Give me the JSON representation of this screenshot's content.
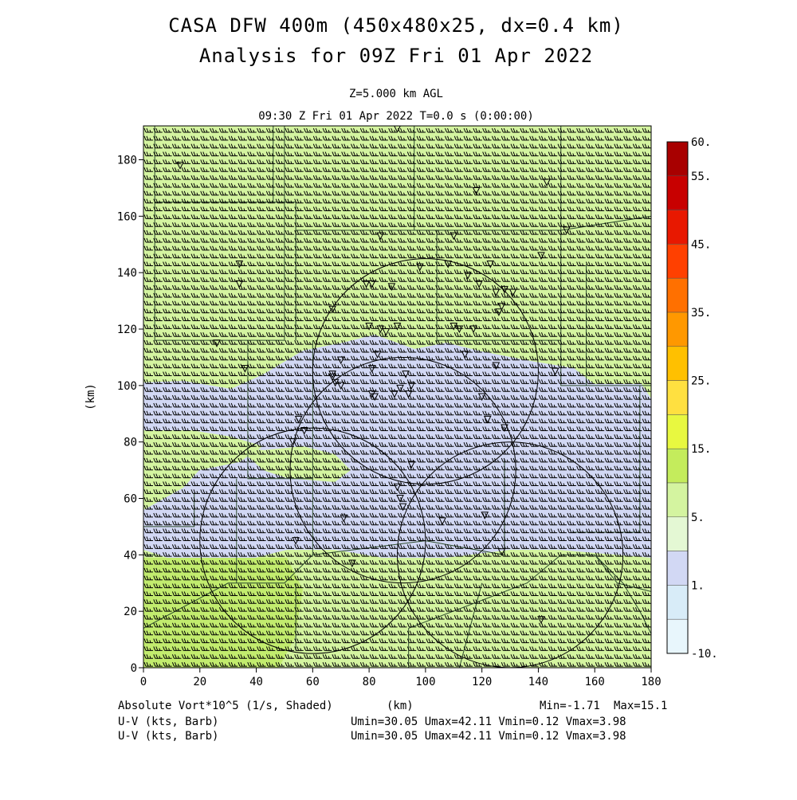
{
  "header": {
    "title_line1": "CASA DFW 400m (450x480x25, dx=0.4 km)",
    "title_line2": "Analysis for 09Z Fri 01 Apr 2022",
    "level": "Z=5.000 km AGL",
    "time": "09:30 Z Fri 01 Apr 2022    T=0.0 s (0:00:00)"
  },
  "colors": {
    "background_field": "#d4f4a0",
    "low_vort_patch": "#d2d8f4",
    "strong_low_corner": "#c2ec6e",
    "barb": "#000000"
  },
  "chart_data": {
    "type": "heatmap",
    "xlabel": "(km)",
    "ylabel": "(km)",
    "xlim": [
      0,
      180
    ],
    "ylim": [
      0,
      192
    ],
    "x_ticks": [
      "0",
      "20",
      "40",
      "60",
      "80",
      "100",
      "120",
      "140",
      "160",
      "180"
    ],
    "y_ticks": [
      "0",
      "20",
      "40",
      "60",
      "80",
      "100",
      "120",
      "140",
      "160",
      "180"
    ],
    "field_label": "Absolute Vort*10^5 (1/s, Shaded)",
    "min_label": "Min=-1.71",
    "max_label": "Max=15.1",
    "vector_field": {
      "label_1": "U-V (kts, Barb)",
      "label_2": "U-V (kts, Barb)",
      "stats_1": "Umin=30.05 Umax=42.11 Vmin=0.12 Vmax=3.98",
      "stats_2": "Umin=30.05 Umax=42.11 Vmin=0.12 Vmax=3.98"
    },
    "colorbar": {
      "labels": [
        "60.",
        "55.",
        "45.",
        "35.",
        "25.",
        "15.",
        "5.",
        "1.",
        "-10."
      ],
      "colors": [
        "#a80000",
        "#c80000",
        "#e81800",
        "#ff4000",
        "#ff7000",
        "#ff9800",
        "#ffc000",
        "#ffe040",
        "#e8f840",
        "#c4ec5c",
        "#d4f4a0",
        "#e4f8d4",
        "#d2d8f4",
        "#d8ecf8",
        "#e8f6fc"
      ]
    },
    "radar_rings_center_km": [
      [
        60,
        45
      ],
      [
        92,
        70
      ],
      [
        100,
        105
      ],
      [
        130,
        40
      ]
    ],
    "triangles_km": [
      [
        13,
        178
      ],
      [
        90,
        191
      ],
      [
        118,
        169
      ],
      [
        143,
        172
      ],
      [
        150,
        155
      ],
      [
        84,
        153
      ],
      [
        110,
        153
      ],
      [
        141,
        146
      ],
      [
        34,
        143
      ],
      [
        98,
        142
      ],
      [
        108,
        143
      ],
      [
        123,
        143
      ],
      [
        115,
        139
      ],
      [
        119,
        136
      ],
      [
        34,
        136
      ],
      [
        79,
        136
      ],
      [
        81,
        136
      ],
      [
        88,
        135
      ],
      [
        128,
        134
      ],
      [
        125,
        133
      ],
      [
        131,
        133
      ],
      [
        127,
        128
      ],
      [
        67,
        127
      ],
      [
        126,
        126
      ],
      [
        110,
        121
      ],
      [
        112,
        120
      ],
      [
        117,
        120
      ],
      [
        80,
        121
      ],
      [
        84,
        120
      ],
      [
        86,
        119
      ],
      [
        90,
        121
      ],
      [
        26,
        115
      ],
      [
        114,
        111
      ],
      [
        83,
        111
      ],
      [
        70,
        109
      ],
      [
        125,
        107
      ],
      [
        36,
        106
      ],
      [
        81,
        106
      ],
      [
        67,
        104
      ],
      [
        93,
        104
      ],
      [
        146,
        105
      ],
      [
        67,
        103
      ],
      [
        68,
        101
      ],
      [
        95,
        100
      ],
      [
        70,
        100
      ],
      [
        91,
        99
      ],
      [
        89,
        97
      ],
      [
        94,
        97
      ],
      [
        81,
        97
      ],
      [
        82,
        96
      ],
      [
        120,
        96
      ],
      [
        122,
        88
      ],
      [
        128,
        85
      ],
      [
        55,
        88
      ],
      [
        57,
        84
      ],
      [
        53,
        80
      ],
      [
        95,
        72
      ],
      [
        90,
        64
      ],
      [
        91,
        60
      ],
      [
        92,
        57
      ],
      [
        121,
        54
      ],
      [
        106,
        52
      ],
      [
        71,
        53
      ],
      [
        54,
        45
      ],
      [
        127,
        41
      ],
      [
        74,
        37
      ],
      [
        141,
        17
      ]
    ]
  }
}
